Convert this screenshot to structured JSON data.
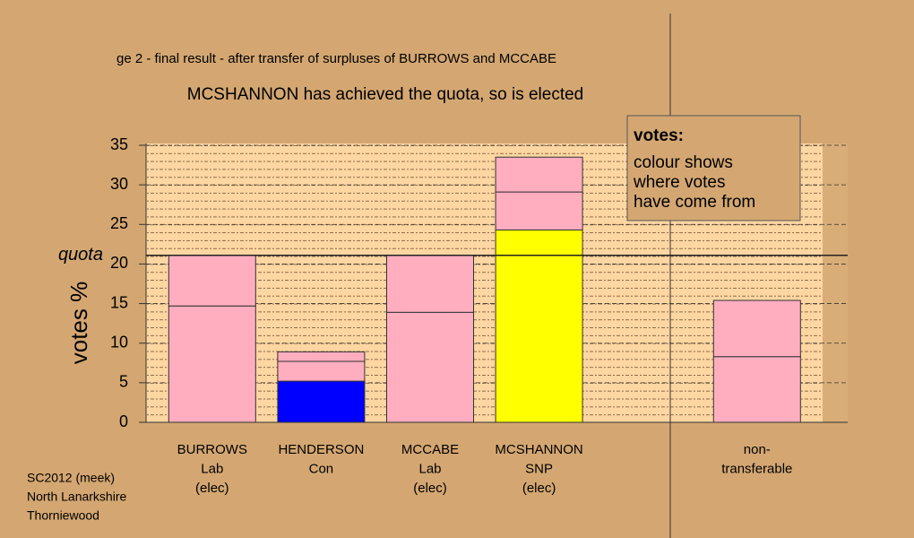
{
  "chart_data": {
    "type": "stacked_bar",
    "title": "ge 2 - final result - after transfer of surpluses of BURROWS and MCCABE",
    "subtitle": "MCSHANNON has achieved the quota, so is elected",
    "y_label": "votes %",
    "categories": [
      [
        "BURROWS",
        "Lab",
        "(elec)"
      ],
      [
        "HENDERSON",
        "Con"
      ],
      [
        "MCCABE",
        "Lab",
        "(elec)"
      ],
      [
        "MCSHANNON",
        "SNP",
        "(elec)"
      ],
      null,
      [
        "non-",
        "transferable"
      ]
    ],
    "series": [
      {
        "colors": [
          "#ffaebf",
          "#0000ff",
          "#ffaebf",
          "#ffff00",
          null,
          "#ffaebf"
        ],
        "values": [
          14.7,
          5.2,
          13.9,
          24.3,
          null,
          8.3
        ]
      },
      {
        "colors": [
          "#ffaebf",
          "#ffaebf",
          "#ffaebf",
          "#ffaebf",
          null,
          "#ffaebf"
        ],
        "values": [
          6.4,
          2.5,
          7.2,
          4.8,
          null,
          7.1
        ]
      },
      {
        "colors": [
          null,
          "#ffaebf",
          null,
          "#ffaebf",
          null,
          null
        ],
        "values": [
          null,
          1.2,
          null,
          4.4,
          null,
          null
        ]
      }
    ],
    "ylim": [
      0,
      35
    ],
    "yticks": [
      0,
      5,
      10,
      15,
      20,
      25,
      30,
      35
    ],
    "grid": true,
    "quota": {
      "label": "quota",
      "value": 21.1
    },
    "legend_box": {
      "title": "votes:",
      "lines": [
        "colour shows",
        "where votes",
        "have come from"
      ]
    },
    "footer": [
      "SC2012 (meek)",
      "North Lanarkshire",
      "Thorniewood"
    ]
  }
}
